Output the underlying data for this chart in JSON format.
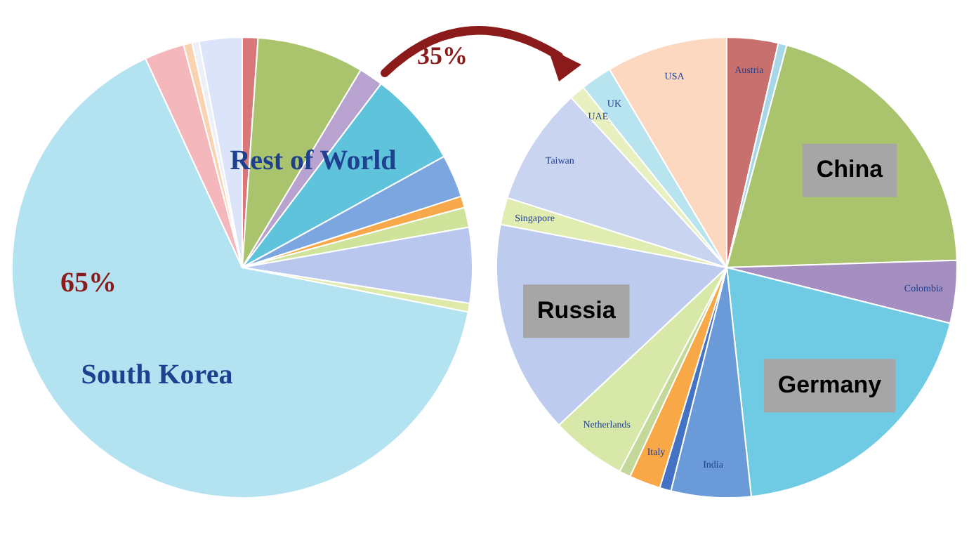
{
  "chart_data": [
    {
      "type": "pie",
      "categories": [
        null,
        null,
        null,
        null,
        null,
        null,
        null,
        null,
        null,
        "South Korea",
        null,
        null,
        null,
        null
      ],
      "values": [
        1.1,
        7.5,
        1.7,
        6.7,
        3,
        0.8,
        1.4,
        5.3,
        0.6,
        65,
        2.8,
        0.6,
        0.5,
        3
      ],
      "colors": [
        "#d9787a",
        "#a9c46c",
        "#b8a2d0",
        "#5fc3dc",
        "#7ca6e0",
        "#f7a84a",
        "#cfe39a",
        "#b9c6ee",
        "#dfeaa8",
        "#b3e3f0",
        "#f4b8bc",
        "#fbd2b0",
        "#eef0f8",
        "#dbe4f8"
      ],
      "annotations": [
        "Rest of World",
        "65%"
      ]
    },
    {
      "type": "pie",
      "categories": [
        "Austria",
        null,
        "China",
        "Colombia",
        "Germany",
        "India",
        null,
        "Italy",
        null,
        "Netherlands",
        "Russia",
        "Singapore",
        "Taiwan",
        "UAE",
        "UK",
        "USA"
      ],
      "values": [
        3.6,
        0.6,
        20.3,
        4.4,
        19.4,
        5.6,
        0.8,
        2.2,
        0.8,
        5.3,
        15,
        1.9,
        8.3,
        1.1,
        2.2,
        8.5
      ],
      "colors": [
        "#c8706e",
        "#a8d8e8",
        "#a9c46c",
        "#a58fc0",
        "#6fcbe3",
        "#6a9ad8",
        "#4472c4",
        "#f9a848",
        "#c4d89a",
        "#d8e8a8",
        "#bccbee",
        "#e0ecb0",
        "#c8d4f0",
        "#e8f0c0",
        "#b8e4f0",
        "#fcd8c0"
      ],
      "annotations": [
        "35%"
      ]
    }
  ]
}
